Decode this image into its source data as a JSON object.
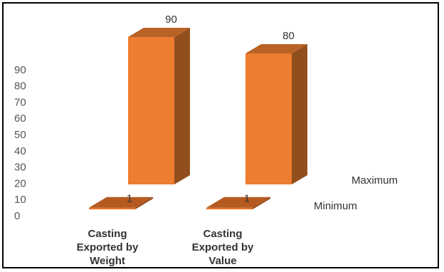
{
  "chart_data": {
    "type": "bar",
    "title": "",
    "xlabel": "",
    "ylabel": "",
    "ylim": [
      0,
      90
    ],
    "yticks": [
      0,
      10,
      20,
      30,
      40,
      50,
      60,
      70,
      80,
      90
    ],
    "categories": [
      [
        "Casting",
        "Exported by",
        "Weight"
      ],
      [
        "Casting",
        "Exported by",
        "Value"
      ]
    ],
    "series": [
      {
        "name": "Minimum",
        "values": [
          1,
          1
        ],
        "color": "#E8732A"
      },
      {
        "name": "Maximum",
        "values": [
          90,
          80
        ],
        "color": "#ED7D31"
      }
    ],
    "grid": false,
    "legend": "series labels on depth axis (right)"
  }
}
